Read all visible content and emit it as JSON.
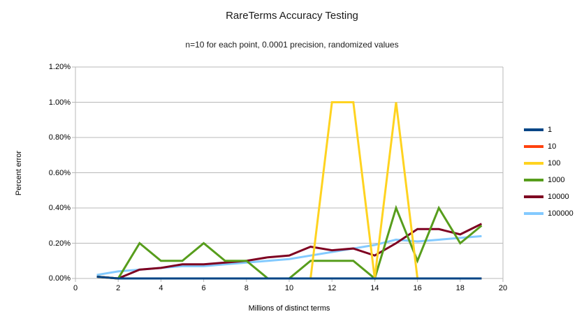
{
  "chart_data": {
    "type": "line",
    "title": "RareTerms Accuracy Testing",
    "subtitle": "n=10 for each point, 0.0001 precision, randomized values",
    "xlabel": "Millions of distinct terms",
    "ylabel": "Percent error",
    "xlim": [
      0,
      20
    ],
    "ylim_percent": [
      0,
      1.2
    ],
    "grid": "horizontal",
    "legend_position": "right",
    "xticks": [
      "0",
      "2",
      "4",
      "6",
      "8",
      "10",
      "12",
      "14",
      "16",
      "18",
      "20"
    ],
    "yticks": [
      "0.00%",
      "0.20%",
      "0.40%",
      "0.60%",
      "0.80%",
      "1.00%",
      "1.20%"
    ],
    "x": [
      1,
      2,
      3,
      4,
      5,
      6,
      7,
      8,
      9,
      10,
      11,
      12,
      13,
      14,
      15,
      16,
      17,
      18,
      19
    ],
    "series": [
      {
        "name": "1",
        "color": "#004586",
        "values_percent": [
          0.01,
          0,
          0,
          0,
          0,
          0,
          0,
          0,
          0,
          0,
          0,
          0,
          0,
          0,
          0,
          0,
          0,
          0,
          0
        ]
      },
      {
        "name": "10",
        "color": "#FF420E",
        "values_percent": [
          0.01,
          0,
          0,
          0,
          0,
          0,
          0,
          0,
          0,
          0,
          0,
          0,
          0,
          0,
          0,
          0,
          0,
          0,
          0
        ]
      },
      {
        "name": "100",
        "color": "#FFD320",
        "values_percent": [
          0.01,
          0,
          0,
          0,
          0,
          0,
          0,
          0,
          0,
          0,
          0,
          1.0,
          1.0,
          0,
          1.0,
          0,
          0,
          0,
          0
        ]
      },
      {
        "name": "1000",
        "color": "#579D1C",
        "values_percent": [
          0.01,
          0,
          0.2,
          0.1,
          0.1,
          0.2,
          0.1,
          0.1,
          0,
          0,
          0.1,
          0.1,
          0.1,
          0,
          0.4,
          0.1,
          0.4,
          0.2,
          0.3
        ]
      },
      {
        "name": "10000",
        "color": "#7E0021",
        "values_percent": [
          0.01,
          0,
          0.05,
          0.06,
          0.08,
          0.08,
          0.09,
          0.1,
          0.12,
          0.13,
          0.18,
          0.16,
          0.17,
          0.13,
          0.2,
          0.28,
          0.28,
          0.25,
          0.31
        ]
      },
      {
        "name": "100000",
        "color": "#83CAFF",
        "values_percent": [
          0.02,
          0.04,
          0.05,
          0.06,
          0.07,
          0.07,
          0.08,
          0.09,
          0.1,
          0.11,
          0.13,
          0.15,
          0.17,
          0.19,
          0.22,
          0.21,
          0.22,
          0.23,
          0.24
        ]
      }
    ],
    "colors": {
      "gridline": "#b8b8b8",
      "background": "#ffffff"
    }
  }
}
